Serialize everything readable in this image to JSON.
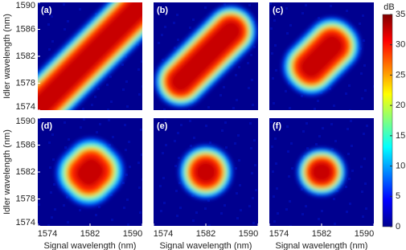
{
  "chart_data": [
    {
      "type": "heatmap",
      "label": "(a)",
      "xlim": [
        1574,
        1590
      ],
      "ylim": [
        1574,
        1590
      ],
      "yticks": [
        1574,
        1578,
        1582,
        1586,
        1590
      ],
      "y_label": "Idler wavelength (nm)"
    },
    {
      "type": "heatmap",
      "label": "(b)",
      "xlim": [
        1574,
        1590
      ],
      "ylim": [
        1574,
        1590
      ]
    },
    {
      "type": "heatmap",
      "label": "(c)",
      "xlim": [
        1574,
        1590
      ],
      "ylim": [
        1574,
        1590
      ]
    },
    {
      "type": "heatmap",
      "label": "(d)",
      "xlim": [
        1574,
        1590
      ],
      "ylim": [
        1574,
        1590
      ],
      "xticks": [
        1574,
        1582,
        1590
      ],
      "yticks": [
        1574,
        1578,
        1582,
        1586,
        1590
      ],
      "x_label": "Signal wavelength (nm)",
      "y_label": "Idler wavelength (nm)"
    },
    {
      "type": "heatmap",
      "label": "(e)",
      "xlim": [
        1574,
        1590
      ],
      "ylim": [
        1574,
        1590
      ],
      "xticks": [
        1574,
        1582,
        1590
      ],
      "x_label": "Signal wavelength (nm)"
    },
    {
      "type": "heatmap",
      "label": "(f)",
      "xlim": [
        1574,
        1590
      ],
      "ylim": [
        1574,
        1590
      ],
      "xticks": [
        1574,
        1582,
        1590
      ],
      "x_label": "Signal wavelength (nm)"
    },
    {
      "type": "colorbar",
      "title": "dB",
      "ylim": [
        0,
        35
      ],
      "yticks": [
        0,
        5,
        10,
        15,
        20,
        25,
        30,
        35
      ]
    }
  ]
}
